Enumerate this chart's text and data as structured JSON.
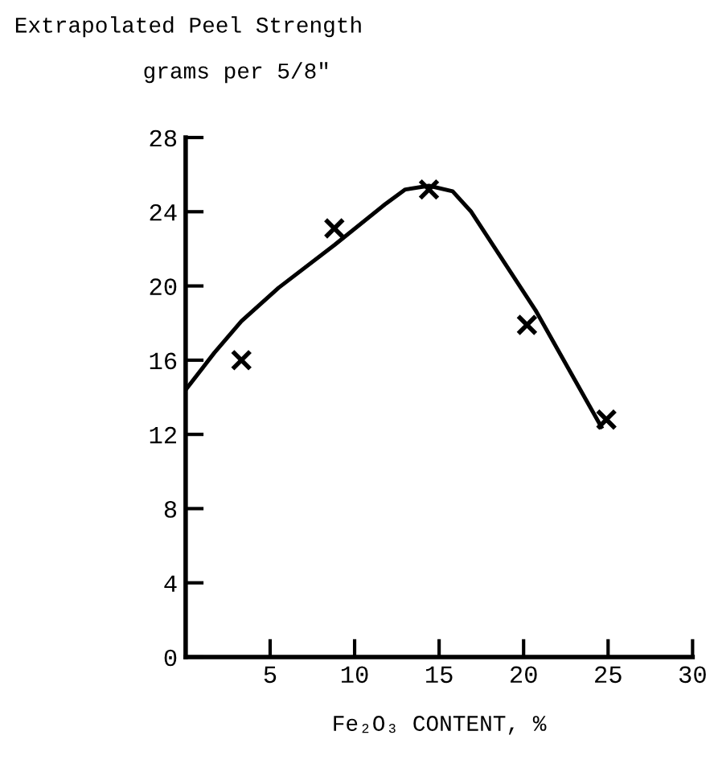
{
  "chart_data": {
    "type": "scatter",
    "title": "Extrapolated Peel Strength",
    "ylabel": "grams per 5/8\"",
    "xlabel": "Fe₂O₃ CONTENT, %",
    "series": [
      {
        "color": "#000000",
        "marker": "cross",
        "x": [
          3.3,
          8.8,
          14.4,
          20.2,
          24.9
        ],
        "values": [
          16.0,
          23.1,
          25.2,
          17.9,
          12.8
        ]
      },
      {
        "type": "line",
        "color": "#000000",
        "marker": "none",
        "x": [
          0,
          1.7,
          3.3,
          5.5,
          8.8,
          11.8,
          13.0,
          14.4,
          15.8,
          16.9,
          20.7,
          24.6
        ],
        "values": [
          14.4,
          16.4,
          18.1,
          19.9,
          22.2,
          24.4,
          25.2,
          25.4,
          25.1,
          24.0,
          18.7,
          12.4
        ]
      }
    ],
    "xlim": [
      0,
      30
    ],
    "xticks": [
      5,
      10,
      15,
      20,
      25,
      30
    ],
    "ylim": [
      0,
      28
    ],
    "yticks": [
      0,
      4,
      8,
      12,
      16,
      20,
      24,
      28
    ],
    "grid": false
  }
}
